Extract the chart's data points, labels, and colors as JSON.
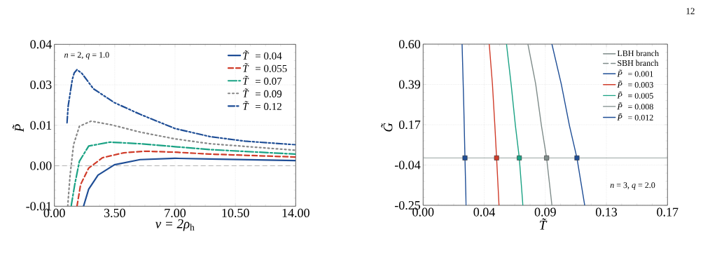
{
  "chart_data": [
    {
      "type": "line",
      "xlabel": "*v = 2ρ*$_{h}$",
      "ylabel": "*P̃*",
      "xlim": [
        0,
        14
      ],
      "ylim": [
        -0.01,
        0.04
      ],
      "xticks": [
        {
          "value": 0,
          "label": "0.00"
        },
        {
          "value": 3.5,
          "label": "3.50"
        },
        {
          "value": 7,
          "label": "7.00"
        },
        {
          "value": 10.5,
          "label": "10.50"
        },
        {
          "value": 14,
          "label": "14.00"
        }
      ],
      "yticks": [
        {
          "value": -0.01,
          "label": "-0.01"
        },
        {
          "value": 0.0025,
          "label": "0.00"
        },
        {
          "value": 0.015,
          "label": "0.01"
        },
        {
          "value": 0.0275,
          "label": "0.03"
        },
        {
          "value": 0.04,
          "label": "0.04"
        }
      ],
      "grid": true,
      "legend": "top right",
      "annotations": [
        "*n* = 2,  *q* = 1.0"
      ],
      "ref_lines": [
        {
          "axis": "y",
          "value": 0.0025,
          "color": "#aaaaaa",
          "line_style": "dashed"
        }
      ],
      "series": [
        {
          "name": "*T̃* = 0.04",
          "color": "#1f4e96",
          "line_style": "solid",
          "x": [
            1.69,
            1.99,
            2.53,
            3.48,
            4.97,
            7.0,
            9.03,
            13.97
          ],
          "values": [
            -0.01,
            -0.0047,
            -0.0004,
            0.0028,
            0.0044,
            0.0048,
            0.0046,
            0.0041
          ]
        },
        {
          "name": "*T̃* = 0.055",
          "color": "#d03c2a",
          "line_style": "dashed",
          "x": [
            1.31,
            1.52,
            1.99,
            2.8,
            4.02,
            5.24,
            7.0,
            9.03,
            13.97
          ],
          "values": [
            -0.01,
            -0.0033,
            0.0018,
            0.005,
            0.0065,
            0.007,
            0.0067,
            0.0061,
            0.0052
          ]
        },
        {
          "name": "*T̃* = 0.07",
          "color": "#1aa284",
          "line_style": "dashdot",
          "x": [
            0.97,
            1.18,
            1.45,
            1.99,
            3.21,
            4.97,
            7.0,
            9.03,
            13.97
          ],
          "values": [
            -0.01,
            -0.0033,
            0.0039,
            0.0086,
            0.0098,
            0.0093,
            0.0084,
            0.0075,
            0.0061
          ]
        },
        {
          "name": "*T̃* = 0.09",
          "color": "#888888",
          "line_style": "dotted",
          "x": [
            0.77,
            0.91,
            1.11,
            1.45,
            2.13,
            3.34,
            4.97,
            7.0,
            9.03,
            13.97
          ],
          "values": [
            -0.01,
            -0.0004,
            0.009,
            0.0147,
            0.0163,
            0.0151,
            0.0129,
            0.0108,
            0.0093,
            0.0073
          ]
        },
        {
          "name": "*T̃* = 0.12",
          "color": "#1f4e96",
          "line_style": "dashdotdot",
          "x": [
            0.73,
            0.8,
            0.91,
            1.04,
            1.15,
            1.31,
            1.6,
            2.26,
            3.48,
            4.97,
            7.0,
            9.03,
            11.06,
            13.97
          ],
          "values": [
            0.0158,
            0.021,
            0.0248,
            0.0292,
            0.0312,
            0.0322,
            0.031,
            0.0263,
            0.022,
            0.0184,
            0.014,
            0.0115,
            0.0101,
            0.009
          ]
        }
      ]
    },
    {
      "type": "line",
      "xlabel": "*T̃*",
      "ylabel": "*G̃*",
      "xlim": [
        0,
        0.17
      ],
      "ylim": [
        -0.25,
        0.6
      ],
      "xticks": [
        {
          "value": 0,
          "label": "0.00"
        },
        {
          "value": 0.0425,
          "label": "0.04"
        },
        {
          "value": 0.085,
          "label": "0.09"
        },
        {
          "value": 0.1275,
          "label": "0.13"
        },
        {
          "value": 0.17,
          "label": "0.17"
        }
      ],
      "yticks": [
        {
          "value": -0.25,
          "label": "-0.25"
        },
        {
          "value": -0.0375,
          "label": "-0.04"
        },
        {
          "value": 0.175,
          "label": "0.17"
        },
        {
          "value": 0.3875,
          "label": "0.39"
        },
        {
          "value": 0.6,
          "label": "0.60"
        }
      ],
      "grid": true,
      "legend": "top right",
      "annotations": [
        "*n* = 3,  *q* = 2.0",
        "12"
      ],
      "ref_lines": [
        {
          "axis": "y",
          "value": 0,
          "color": "#8a9795",
          "line_style": "solid"
        }
      ],
      "series": [
        {
          "name": "LBH branch",
          "color": "#7f8c8a",
          "line_style": "solid"
        },
        {
          "name": "SBH branch",
          "color": "#7f8c8a",
          "line_style": "dashed"
        },
        {
          "name": "*P̃* = 0.001",
          "color": "#1f4e96",
          "line_style": "solid",
          "x": [
            0.0271,
            0.0282,
            0.0291,
            0.0299
          ],
          "values": [
            0.6,
            0.3,
            0,
            -0.25
          ]
        },
        {
          "name": "*P̃* = 0.003",
          "color": "#d03c2a",
          "line_style": "solid",
          "x": [
            0.046,
            0.0482,
            0.0499,
            0.0511,
            0.0528
          ],
          "values": [
            0.6,
            0.39,
            0.17,
            0,
            -0.25
          ]
        },
        {
          "name": "*P̃* = 0.005",
          "color": "#1aa284",
          "line_style": "solid",
          "x": [
            0.058,
            0.0612,
            0.0642,
            0.0669,
            0.0694
          ],
          "values": [
            0.6,
            0.39,
            0.17,
            0,
            -0.25
          ]
        },
        {
          "name": "*P̃* = 0.008",
          "color": "#7f8c8a",
          "line_style": "solid",
          "x": [
            0.0729,
            0.0783,
            0.0823,
            0.0859,
            0.0896
          ],
          "values": [
            0.6,
            0.39,
            0.17,
            0,
            -0.25
          ]
        },
        {
          "name": "*P̃* = 0.012",
          "color": "#1f4e96",
          "line_style": "solid",
          "x": [
            0.0896,
            0.0961,
            0.1018,
            0.107,
            0.1124
          ],
          "values": [
            0.6,
            0.39,
            0.17,
            0,
            -0.25
          ]
        },
        {
          "type": "scatter",
          "marker": "square",
          "colors": [
            "#1f4e96",
            "#d03c2a",
            "#1aa284",
            "#7f8c8a",
            "#1f4e96"
          ],
          "x": [
            0.0291,
            0.0511,
            0.0669,
            0.0859,
            0.107
          ],
          "values": [
            0,
            0,
            0,
            0,
            0
          ]
        }
      ]
    }
  ]
}
